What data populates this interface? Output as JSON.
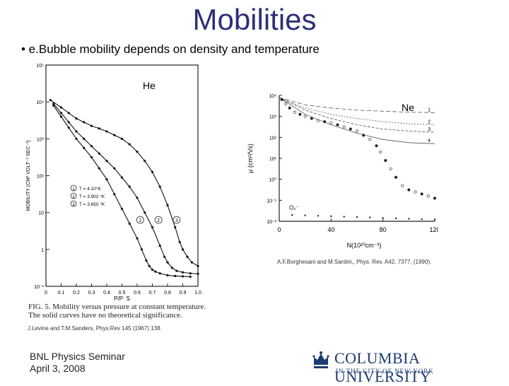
{
  "slide": {
    "title": "Mobilities",
    "bullet": "• e.Bubble mobility depends on density and temperature",
    "footer_line1": "BNL Physics Seminar",
    "footer_line2": "April 3, 2008",
    "logo_name": "COLUMBIA UNIVERSITY",
    "logo_sub": "IN THE CITY OF NEW YORK"
  },
  "chart_data": [
    {
      "type": "line",
      "label": "He",
      "title": "",
      "xlabel": "P/P_S",
      "ylabel": "MOBILITY (CM² VOLT⁻¹ SEC⁻¹)",
      "xlim": [
        0,
        1.0
      ],
      "ylim_log10": [
        -1,
        5
      ],
      "x_ticks": [
        "0",
        "0.1",
        "0.2",
        "0.3",
        "0.4",
        "0.5",
        "0.6",
        "0.7",
        "0.8",
        "0.9",
        "1.0"
      ],
      "y_ticks": [
        "10⁻¹",
        "1",
        "10",
        "10²",
        "10³",
        "10⁴",
        "10⁵"
      ],
      "legend": [
        "T = 4.10°K",
        "T = 3.902 °K",
        "T = 3.650 °K"
      ],
      "curve_markers": [
        "1",
        "2",
        "3"
      ],
      "series": [
        {
          "name": "1",
          "x": [
            0.05,
            0.1,
            0.15,
            0.2,
            0.25,
            0.3,
            0.35,
            0.4,
            0.45,
            0.5,
            0.55,
            0.6,
            0.63,
            0.66,
            0.68,
            0.7,
            0.72,
            0.75,
            0.8,
            0.85,
            0.9,
            0.95
          ],
          "log10_mu": [
            3.9,
            3.6,
            3.3,
            3.0,
            2.75,
            2.5,
            2.2,
            1.9,
            1.5,
            1.1,
            0.7,
            0.3,
            0.0,
            -0.3,
            -0.45,
            -0.55,
            -0.6,
            -0.65,
            -0.7,
            -0.72,
            -0.73,
            -0.74
          ]
        },
        {
          "name": "2",
          "x": [
            0.05,
            0.1,
            0.15,
            0.2,
            0.25,
            0.3,
            0.35,
            0.4,
            0.45,
            0.5,
            0.55,
            0.6,
            0.65,
            0.7,
            0.75,
            0.78,
            0.8,
            0.83,
            0.86,
            0.9,
            0.95,
            1.0
          ],
          "log10_mu": [
            3.95,
            3.7,
            3.45,
            3.2,
            3.0,
            2.8,
            2.6,
            2.4,
            2.2,
            1.95,
            1.7,
            1.4,
            1.0,
            0.6,
            0.1,
            -0.2,
            -0.35,
            -0.5,
            -0.58,
            -0.62,
            -0.65,
            -0.66
          ]
        },
        {
          "name": "3",
          "x": [
            0.03,
            0.1,
            0.15,
            0.2,
            0.25,
            0.3,
            0.35,
            0.4,
            0.45,
            0.5,
            0.55,
            0.6,
            0.65,
            0.7,
            0.75,
            0.8,
            0.85,
            0.88,
            0.9,
            0.93,
            0.96,
            1.0
          ],
          "log10_mu": [
            4.05,
            3.85,
            3.7,
            3.55,
            3.45,
            3.35,
            3.28,
            3.2,
            3.1,
            3.0,
            2.85,
            2.65,
            2.4,
            2.1,
            1.7,
            1.2,
            0.6,
            0.2,
            0.0,
            -0.2,
            -0.35,
            -0.45
          ]
        }
      ]
    },
    {
      "type": "scatter",
      "label": "Ne",
      "xlabel": "N(10²⁰cm⁻³)",
      "ylabel": "µ (cm²/Vs)",
      "xlim": [
        0,
        120
      ],
      "ylim_log10": [
        -2,
        4
      ],
      "x_ticks": [
        "0",
        "40",
        "80",
        "120"
      ],
      "y_ticks": [
        "10⁴",
        "10³",
        "10²",
        "10¹",
        "10⁰",
        "10⁻¹",
        "10⁻²"
      ],
      "curve_labels": [
        "1",
        "2",
        "3",
        "4"
      ],
      "annotation": "O₂⁻",
      "theory_curves": [
        {
          "name": "1",
          "x": [
            0,
            20,
            40,
            60,
            80,
            100,
            120
          ],
          "log10_mu": [
            3.9,
            3.55,
            3.4,
            3.3,
            3.25,
            3.2,
            3.18
          ]
        },
        {
          "name": "2",
          "x": [
            0,
            20,
            40,
            60,
            80,
            100,
            120
          ],
          "log10_mu": [
            3.9,
            3.4,
            3.1,
            2.9,
            2.75,
            2.65,
            2.6
          ]
        },
        {
          "name": "3",
          "x": [
            0,
            20,
            40,
            60,
            80,
            100,
            120
          ],
          "log10_mu": [
            3.9,
            3.3,
            2.9,
            2.6,
            2.4,
            2.3,
            2.25
          ]
        },
        {
          "name": "4",
          "x": [
            0,
            20,
            40,
            60,
            80,
            100,
            120
          ],
          "log10_mu": [
            3.9,
            3.1,
            2.6,
            2.2,
            1.9,
            1.75,
            1.7
          ]
        }
      ],
      "data_points": {
        "x": [
          2,
          5,
          8,
          12,
          16,
          20,
          25,
          30,
          35,
          40,
          45,
          50,
          55,
          60,
          65,
          70,
          75,
          78,
          82,
          86,
          90,
          95,
          100,
          105,
          110,
          115,
          120
        ],
        "log10_mu": [
          3.8,
          3.6,
          3.4,
          3.2,
          3.1,
          3.0,
          2.9,
          2.8,
          2.75,
          2.7,
          2.6,
          2.5,
          2.4,
          2.3,
          2.1,
          1.9,
          1.6,
          1.3,
          0.9,
          0.5,
          0.1,
          -0.3,
          -0.5,
          -0.6,
          -0.7,
          -0.8,
          -0.9
        ]
      },
      "o2_points": {
        "x": [
          10,
          20,
          30,
          40,
          50,
          60,
          70,
          80,
          90,
          100,
          110,
          120
        ],
        "log10_mu": [
          -1.7,
          -1.72,
          -1.74,
          -1.76,
          -1.78,
          -1.8,
          -1.82,
          -1.84,
          -1.86,
          -1.88,
          -1.9,
          -1.92
        ]
      }
    }
  ],
  "figure": {
    "he_label": "He",
    "ne_label": "Ne",
    "he_caption": "FIG. 5. Mobility versus pressure at constant temperature. The solid curves have no theoretical significance.",
    "ne_reference": "A.F.Borghesani and M.Santini,, Phys. Rev. A42, 7377, (1990).",
    "he_reference": "J.Levine and T.M.Sanders, Phys.Rev 145 (1967) 138."
  }
}
